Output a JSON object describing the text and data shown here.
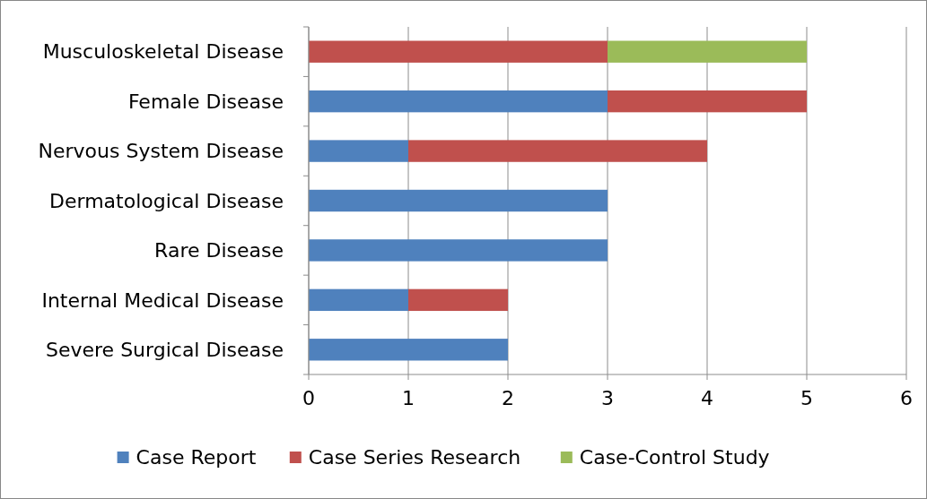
{
  "chart_data": {
    "type": "bar",
    "orientation": "horizontal",
    "stacked": true,
    "categories": [
      "Musculoskeletal Disease",
      "Female Disease",
      "Nervous System Disease",
      "Dermatological Disease",
      "Rare Disease",
      "Internal Medical Disease",
      "Severe Surgical Disease"
    ],
    "series": [
      {
        "name": "Case Report",
        "color": "#4f81bd",
        "values": [
          null,
          3,
          1,
          3,
          3,
          1,
          2
        ]
      },
      {
        "name": "Case Series Research",
        "color": "#c0504d",
        "values": [
          3,
          2,
          3,
          null,
          null,
          1,
          null
        ]
      },
      {
        "name": "Case-Control Study",
        "color": "#9bbb59",
        "values": [
          2,
          null,
          null,
          null,
          null,
          null,
          null
        ]
      }
    ],
    "xlim": [
      0,
      6
    ],
    "xticks": [
      0,
      1,
      2,
      3,
      4,
      5,
      6
    ],
    "grid": "x",
    "legend": "bottom"
  }
}
